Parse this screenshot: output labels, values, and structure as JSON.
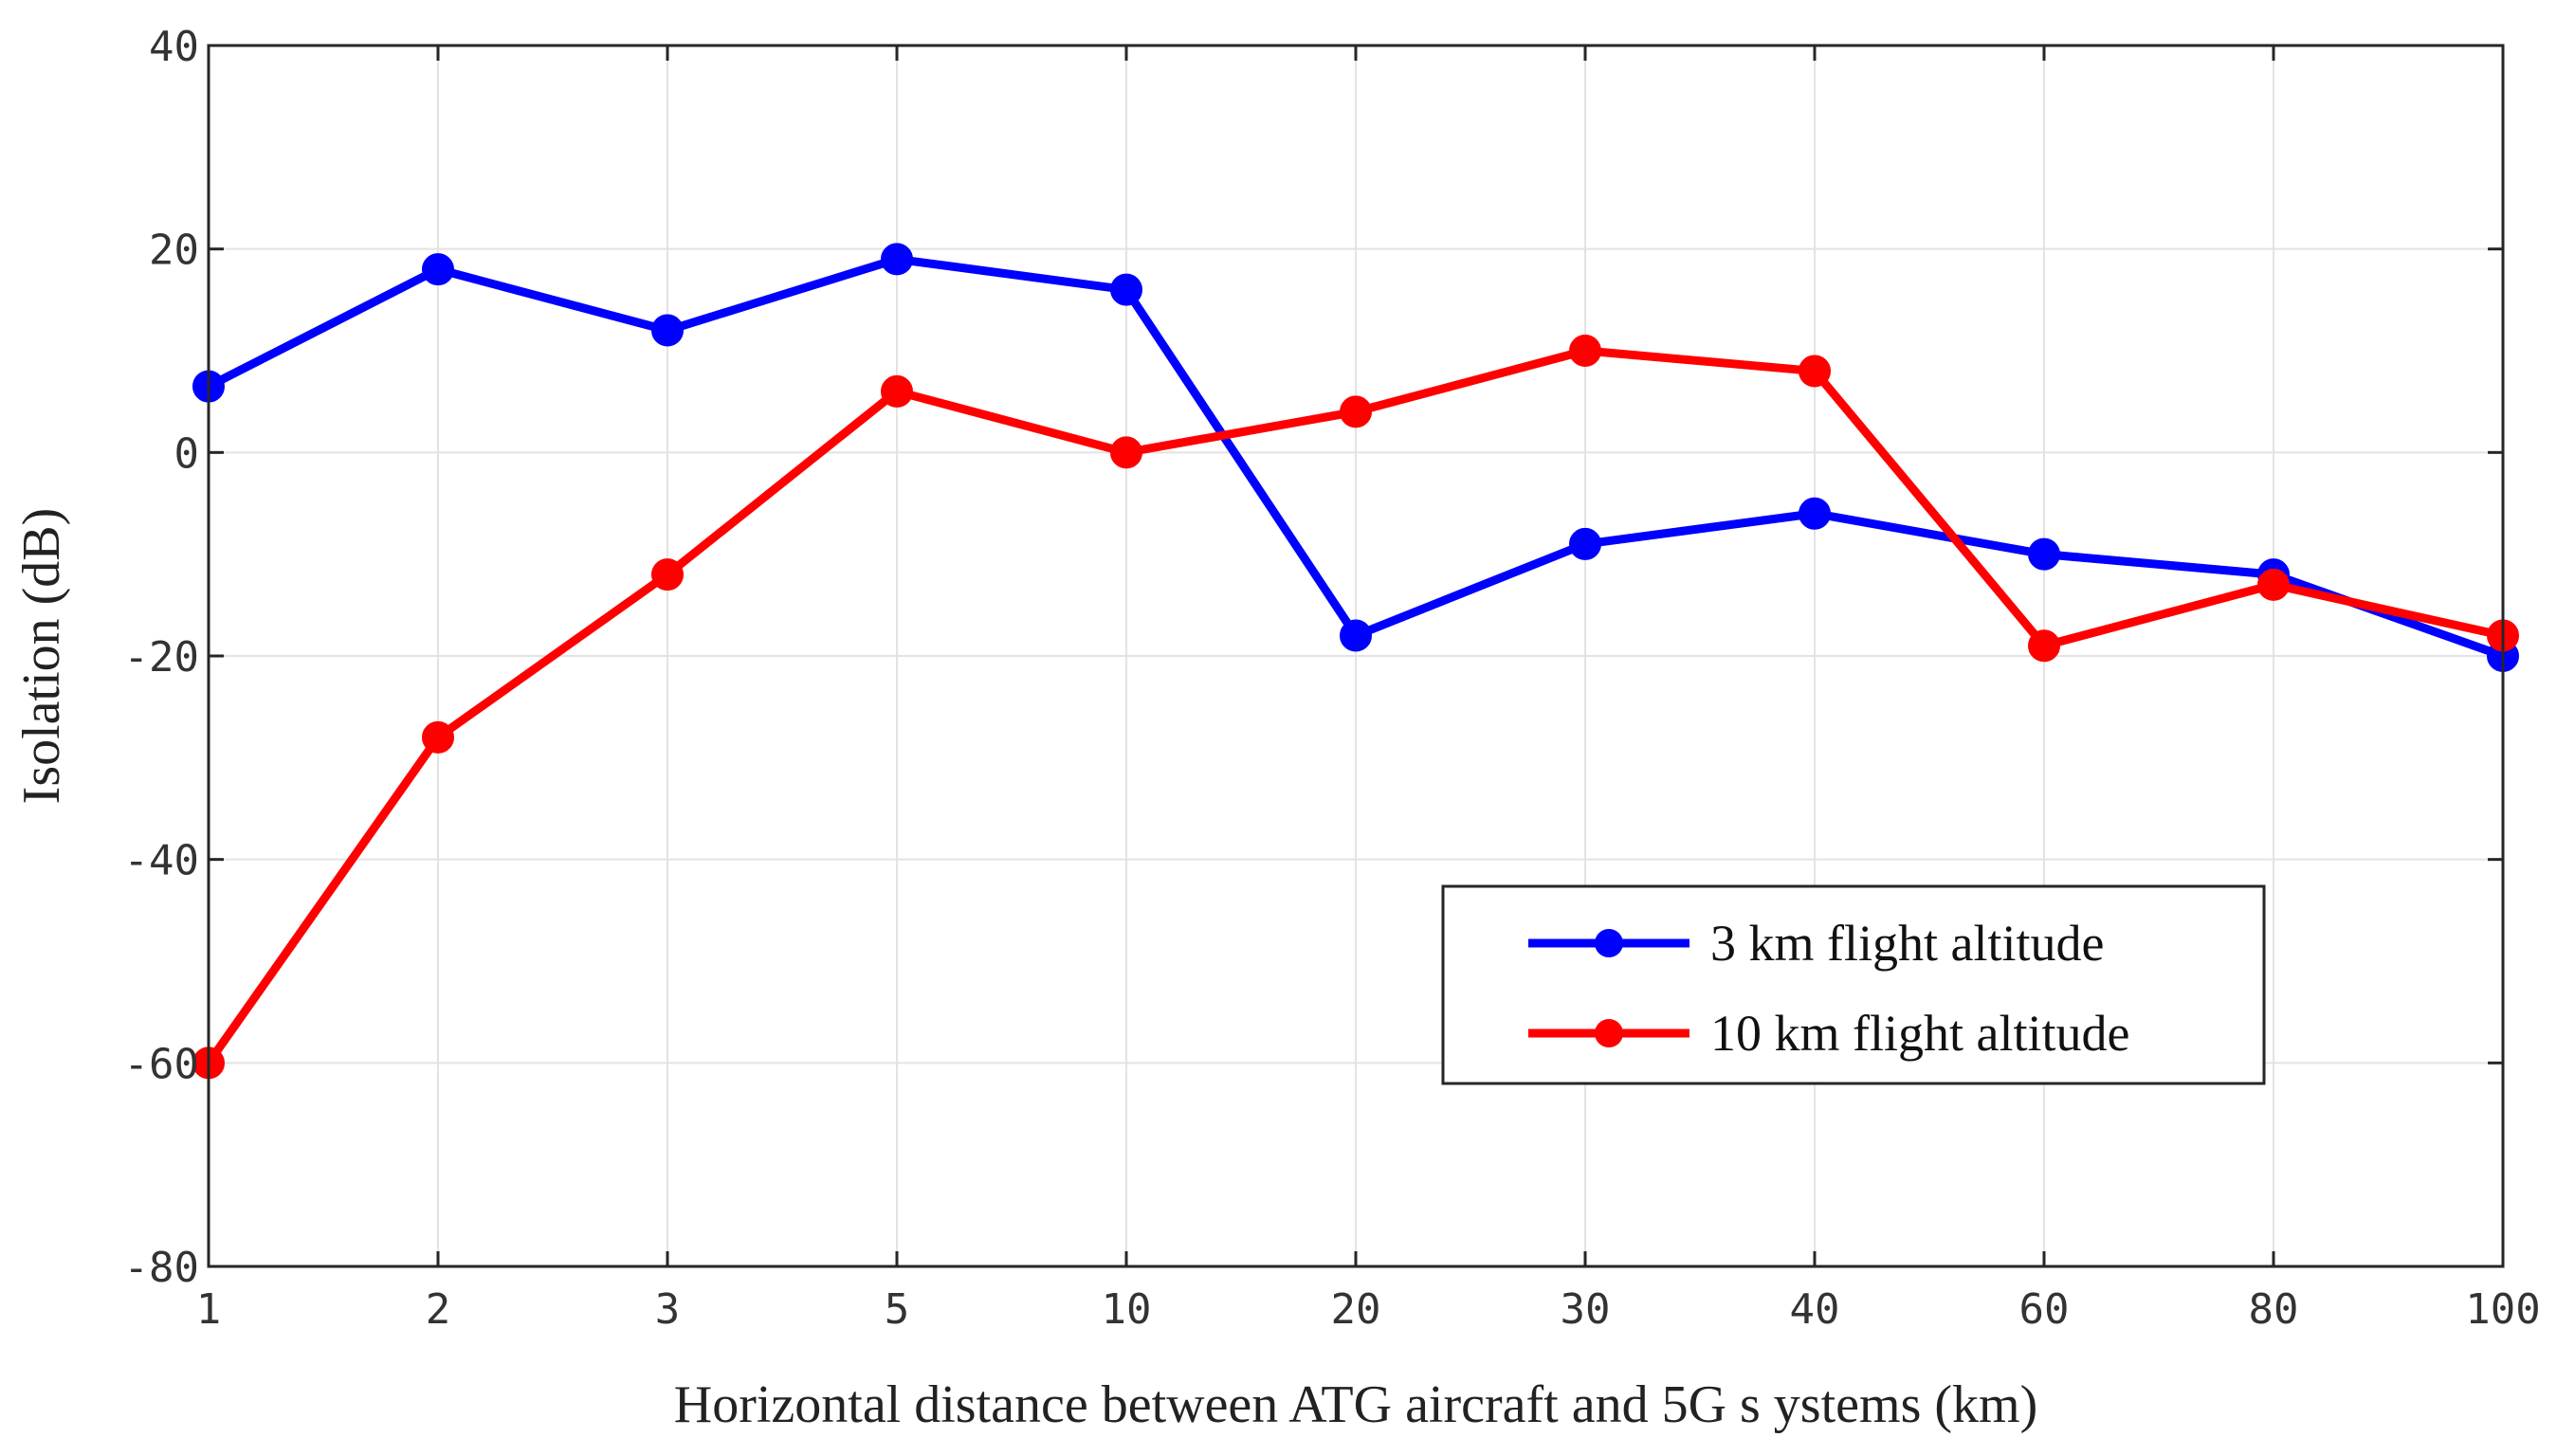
{
  "chart_data": {
    "type": "line",
    "title": "",
    "xlabel": "Horizontal distance between ATG aircraft and 5G s ystems (km)",
    "ylabel": "Isolation (dB)",
    "categories": [
      "1",
      "2",
      "3",
      "5",
      "10",
      "20",
      "30",
      "40",
      "60",
      "80",
      "100"
    ],
    "ylim": [
      -80,
      40
    ],
    "yticks": [
      -80,
      -60,
      -40,
      -20,
      0,
      20,
      40
    ],
    "ytick_labels": [
      "-80",
      "-60",
      "-40",
      "-20",
      "0",
      "20",
      "40"
    ],
    "grid": true,
    "legend_position": "lower-right",
    "series": [
      {
        "name": "3 km flight altitude",
        "color": "#0000ff",
        "values": [
          6.5,
          18,
          12,
          19,
          16,
          -18,
          -9,
          -6,
          -10,
          -12,
          -20
        ]
      },
      {
        "name": "10 km flight altitude",
        "color": "#ff0000",
        "values": [
          -60,
          -28,
          -12,
          6,
          0,
          4,
          10,
          8,
          -19,
          -13,
          -18
        ]
      }
    ]
  }
}
